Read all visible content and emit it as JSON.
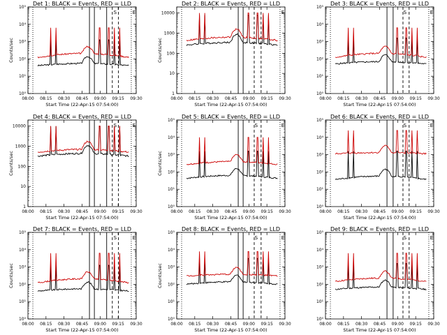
{
  "figure": {
    "time_ticks": [
      "08:00",
      "08:15",
      "08:30",
      "08:45",
      "09:00",
      "09:15",
      "09:30"
    ],
    "colors": {
      "events": "#000000",
      "lld": "#cc0000",
      "axis": "#000000"
    }
  },
  "chart_data": [
    {
      "type": "line",
      "title": "Det 1: BLACK = Events, RED = LLD",
      "ylabel": "Counts/sec",
      "xlabel": "Start Time (22-Apr-15 07:54:00)",
      "yscale": "log",
      "ylim": [
        1,
        100000
      ],
      "yticks": [
        "10⁰",
        "10¹",
        "10²",
        "10³",
        "10⁴",
        "10⁵"
      ],
      "xlim_min": [
        -7,
        37
      ],
      "events_baseline": [
        1.5,
        1.9
      ],
      "lld_baseline": [
        1.9,
        2.6
      ],
      "markers": {
        "solid": [
          18,
          20,
          25
        ],
        "dashed": [
          27.3,
          29.8
        ],
        "dotted": [
          -5,
          35
        ],
        "letters": [
          {
            "text": "E",
            "x": 35.5
          },
          {
            "text": "S",
            "x": 27.8
          }
        ]
      }
    },
    {
      "type": "line",
      "title": "Det 2: BLACK = Events, RED = LLD",
      "ylabel": "Counts/sec",
      "xlabel": "Start Time (22-Apr-15 07:54:00)",
      "yscale": "log",
      "ylim": [
        1,
        20000
      ],
      "yticks": [
        "1",
        "10",
        "100",
        "1000",
        "10000"
      ],
      "xlim_min": [
        -7,
        37
      ],
      "events_baseline": [
        2.3,
        2.7
      ],
      "lld_baseline": [
        2.5,
        3.0
      ],
      "markers": {
        "solid": [
          18,
          20
        ],
        "dashed": [
          24.5,
          27.3
        ],
        "dotted": [
          -5,
          35
        ],
        "letters": [
          {
            "text": "E",
            "x": 35.5
          }
        ]
      }
    },
    {
      "type": "line",
      "title": "Det 3: BLACK = Events, RED = LLD",
      "ylabel": "",
      "xlabel": "Start Time (22-Apr-15 07:54:00)",
      "yscale": "log",
      "ylim": [
        1,
        100000
      ],
      "yticks": [
        "10⁰",
        "10¹",
        "10²",
        "10³",
        "10⁴",
        "10⁵"
      ],
      "xlim_min": [
        -7,
        37
      ],
      "events_baseline": [
        1.6,
        2.0
      ],
      "lld_baseline": [
        1.9,
        2.6
      ],
      "markers": {
        "solid": [
          18,
          20.5
        ],
        "dashed": [
          24.5,
          27
        ],
        "dotted": [
          -5,
          35
        ],
        "letters": [
          {
            "text": "E",
            "x": 35.5
          },
          {
            "text": "S",
            "x": 24.7
          }
        ]
      }
    },
    {
      "type": "line",
      "title": "Det 4: BLACK = Events, RED = LLD",
      "ylabel": "Counts/sec",
      "xlabel": "Start Time (22-Apr-15 07:54:00)",
      "yscale": "log",
      "ylim": [
        1,
        20000
      ],
      "yticks": [
        "1",
        "10",
        "100",
        "1000",
        "10000"
      ],
      "xlim_min": [
        -7,
        37
      ],
      "events_baseline": [
        2.4,
        2.8
      ],
      "lld_baseline": [
        2.6,
        3.0
      ],
      "markers": {
        "solid": [
          18,
          20,
          25
        ],
        "dashed": [
          27.3,
          29.8
        ],
        "dotted": [
          -5,
          35
        ],
        "letters": [
          {
            "text": "E",
            "x": 35.5
          },
          {
            "text": "S",
            "x": 27.8
          }
        ]
      }
    },
    {
      "type": "line",
      "title": "Det 5: BLACK = Events, RED = LLD",
      "ylabel": "Counts/sec",
      "xlabel": "Start Time (22-Apr-15 07:54:00)",
      "yscale": "log",
      "ylim": [
        1,
        100000
      ],
      "yticks": [
        "10⁰",
        "10¹",
        "10²",
        "10³",
        "10⁴",
        "10⁵"
      ],
      "xlim_min": [
        -7,
        37
      ],
      "events_baseline": [
        1.5,
        2.0
      ],
      "lld_baseline": [
        2.3,
        2.8
      ],
      "markers": {
        "solid": [
          18,
          20
        ],
        "dashed": [
          24.5,
          27.3
        ],
        "dotted": [
          -5,
          35
        ],
        "letters": [
          {
            "text": "E",
            "x": 35.5
          },
          {
            "text": "S",
            "x": 24.7
          }
        ]
      }
    },
    {
      "type": "line",
      "title": "Det 6: BLACK = Events, RED = LLD",
      "ylabel": "",
      "xlabel": "Start Time (22-Apr-15 07:54:00)",
      "yscale": "log",
      "ylim": [
        1,
        100000
      ],
      "yticks": [
        "10⁰",
        "10¹",
        "10²",
        "10³",
        "10⁴",
        "10⁵"
      ],
      "xlim_min": [
        -7,
        37
      ],
      "events_baseline": [
        1.4,
        2.0
      ],
      "lld_baseline": [
        3.0,
        3.2
      ],
      "markers": {
        "solid": [
          18,
          20.5
        ],
        "dashed": [
          24.5,
          27
        ],
        "dotted": [
          -5,
          35
        ],
        "letters": [
          {
            "text": "E",
            "x": 35.5
          },
          {
            "text": "S",
            "x": 24.7
          }
        ]
      }
    },
    {
      "type": "line",
      "title": "Det 7: BLACK = Events, RED = LLD",
      "ylabel": "Counts/sec",
      "xlabel": "Start Time (22-Apr-15 07:54:00)",
      "yscale": "log",
      "ylim": [
        1,
        100000
      ],
      "yticks": [
        "10⁰",
        "10¹",
        "10²",
        "10³",
        "10⁴",
        "10⁵"
      ],
      "xlim_min": [
        -7,
        37
      ],
      "events_baseline": [
        1.5,
        1.9
      ],
      "lld_baseline": [
        1.9,
        2.6
      ],
      "markers": {
        "solid": [
          18,
          20,
          25
        ],
        "dashed": [
          27.3,
          29.8
        ],
        "dotted": [
          -5,
          35
        ],
        "letters": [
          {
            "text": "E",
            "x": 35.5
          },
          {
            "text": "S",
            "x": 27.8
          }
        ]
      }
    },
    {
      "type": "line",
      "title": "Det 8: BLACK = Events, RED = LLD",
      "ylabel": "Counts/sec",
      "xlabel": "Start Time (22-Apr-15 07:54:00)",
      "yscale": "log",
      "ylim": [
        1,
        100000
      ],
      "yticks": [
        "10⁰",
        "10¹",
        "10²",
        "10³",
        "10⁴",
        "10⁵"
      ],
      "xlim_min": [
        -7,
        37
      ],
      "events_baseline": [
        1.9,
        2.3
      ],
      "lld_baseline": [
        2.4,
        2.7
      ],
      "markers": {
        "solid": [
          18,
          20
        ],
        "dashed": [
          24.5,
          27.3
        ],
        "dotted": [
          -5,
          35
        ],
        "letters": [
          {
            "text": "E",
            "x": 35.5
          },
          {
            "text": "S",
            "x": 24.7
          }
        ]
      }
    },
    {
      "type": "line",
      "title": "Det 9: BLACK = Events, RED = LLD",
      "ylabel": "",
      "xlabel": "Start Time (22-Apr-15 07:54:00)",
      "yscale": "log",
      "ylim": [
        1,
        100000
      ],
      "yticks": [
        "10⁰",
        "10¹",
        "10²",
        "10³",
        "10⁴",
        "10⁵"
      ],
      "xlim_min": [
        -7,
        37
      ],
      "events_baseline": [
        1.6,
        2.0
      ],
      "lld_baseline": [
        2.0,
        2.6
      ],
      "markers": {
        "solid": [
          18,
          20.5
        ],
        "dashed": [
          24.5,
          27
        ],
        "dotted": [
          -5,
          35
        ],
        "letters": [
          {
            "text": "E",
            "x": 35.5
          },
          {
            "text": "S",
            "x": 24.7
          }
        ]
      }
    }
  ]
}
